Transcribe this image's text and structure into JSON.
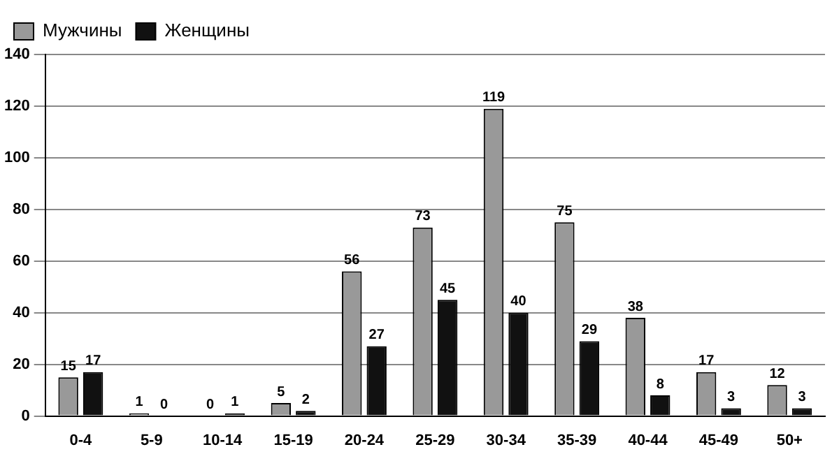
{
  "chart_data": {
    "type": "bar",
    "categories": [
      "0-4",
      "5-9",
      "10-14",
      "15-19",
      "20-24",
      "25-29",
      "30-34",
      "35-39",
      "40-44",
      "45-49",
      "50+"
    ],
    "series": [
      {
        "name": "Мужчины",
        "color": "#999999",
        "values": [
          15,
          1,
          0,
          5,
          56,
          73,
          119,
          75,
          38,
          17,
          12
        ]
      },
      {
        "name": "Женщины",
        "color": "#111111",
        "values": [
          17,
          0,
          1,
          2,
          27,
          45,
          40,
          29,
          8,
          3,
          3
        ]
      }
    ],
    "ylim": [
      0,
      140
    ],
    "yticks": [
      0,
      20,
      40,
      60,
      80,
      100,
      120,
      140
    ],
    "grid": "y",
    "legend": "top left",
    "data_labels": true
  }
}
